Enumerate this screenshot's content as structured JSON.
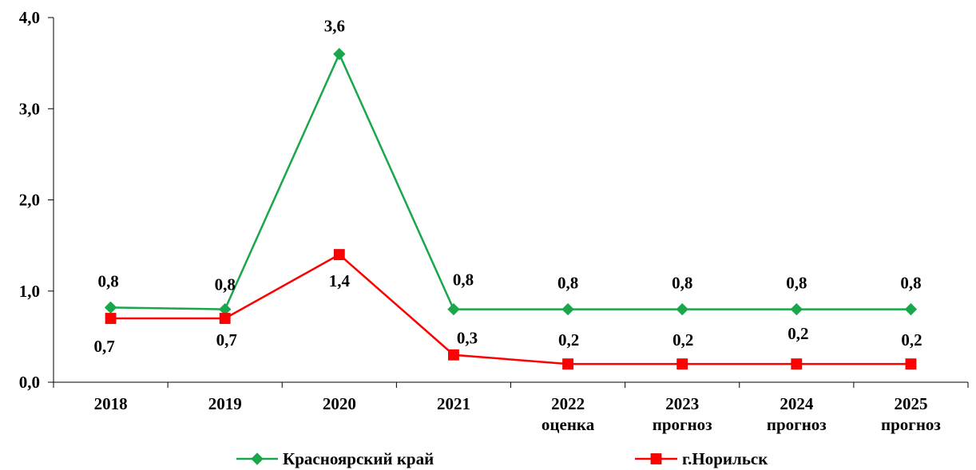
{
  "chart_data": {
    "type": "line",
    "categories": [
      [
        "2018"
      ],
      [
        "2019"
      ],
      [
        "2020"
      ],
      [
        "2021"
      ],
      [
        "2022",
        "оценка"
      ],
      [
        "2023",
        "прогноз"
      ],
      [
        "2024",
        "прогноз"
      ],
      [
        "2025",
        "прогноз"
      ]
    ],
    "ylim": [
      0,
      4
    ],
    "yticks": [
      "0,0",
      "1,0",
      "2,0",
      "3,0",
      "4,0"
    ],
    "grid": false,
    "legend_position": "bottom",
    "series": [
      {
        "name": "Красноярский край",
        "color": "#1aa64a",
        "marker": "diamond",
        "values": [
          0.82,
          0.8,
          3.6,
          0.8,
          0.8,
          0.8,
          0.8,
          0.8
        ],
        "labels": [
          "0,8",
          "0,8",
          "3,6",
          "0,8",
          "0,8",
          "0,8",
          "0,8",
          "0,8"
        ]
      },
      {
        "name": "г.Норильск",
        "color": "#ff0000",
        "marker": "square",
        "values": [
          0.7,
          0.7,
          1.4,
          0.3,
          0.2,
          0.2,
          0.2,
          0.2
        ],
        "labels": [
          "0,7",
          "0,7",
          "1,4",
          "0,3",
          "0,2",
          "0,2",
          "0,2",
          "0,2"
        ]
      }
    ]
  }
}
